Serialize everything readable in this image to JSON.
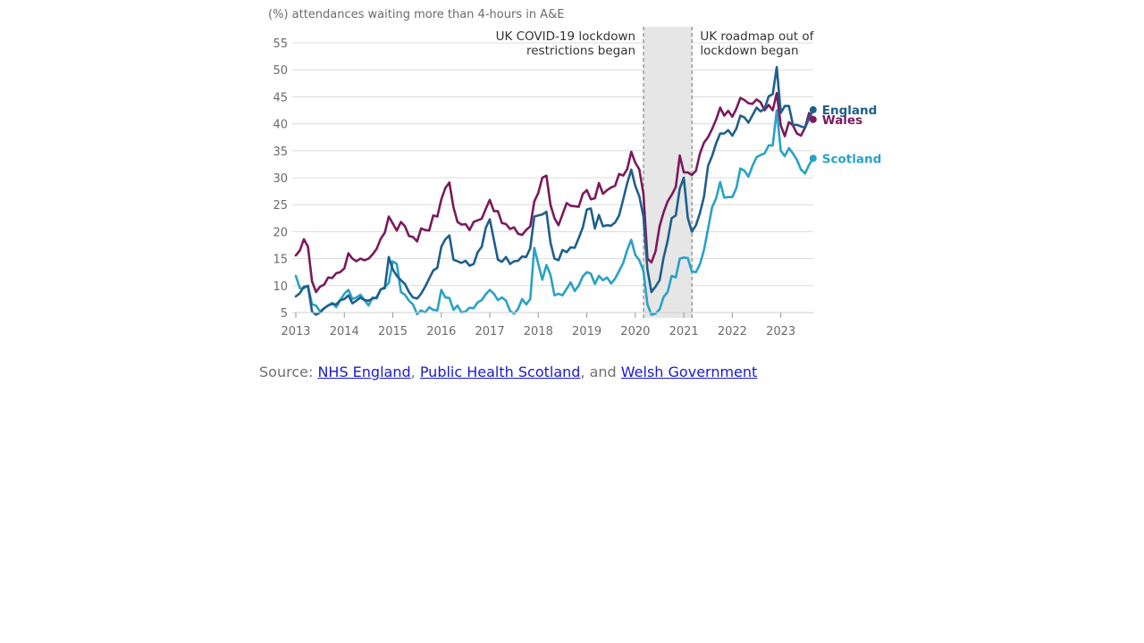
{
  "chart_data": {
    "type": "line",
    "title": "",
    "ylabel": "(%) attendances waiting more than 4-hours in A&E",
    "xlabel": "",
    "ylim": [
      5,
      57
    ],
    "xlim": [
      2013.0,
      2023.67
    ],
    "y_ticks": [
      5,
      10,
      15,
      20,
      25,
      30,
      35,
      40,
      45,
      50,
      55
    ],
    "x_ticks": [
      "2013",
      "2014",
      "2015",
      "2016",
      "2017",
      "2018",
      "2019",
      "2020",
      "2021",
      "2022",
      "2023"
    ],
    "grid": true,
    "shaded_period": [
      2020.17,
      2021.17
    ],
    "annotations": [
      {
        "x": 2020.17,
        "lines": [
          "UK COVID-19 lockdown",
          "restrictions began"
        ],
        "align": "right"
      },
      {
        "x": 2021.17,
        "lines": [
          "UK roadmap out of",
          "lockdown began"
        ],
        "align": "left"
      }
    ],
    "series": [
      {
        "name": "England",
        "color": "#1f5f8b",
        "start": 2013.0,
        "step": 0.08333,
        "values": [
          8.0,
          8.6,
          9.8,
          9.9,
          5.2,
          4.6,
          5.0,
          5.8,
          6.3,
          6.6,
          6.5,
          7.3,
          7.5,
          8.2,
          6.7,
          7.2,
          7.8,
          7.3,
          7.2,
          7.6,
          7.8,
          9.3,
          9.5,
          15.3,
          13.0,
          11.8,
          11.0,
          10.3,
          8.8,
          7.8,
          7.6,
          8.5,
          9.8,
          11.3,
          12.8,
          13.3,
          17.2,
          18.6,
          19.3,
          14.8,
          14.5,
          14.2,
          14.6,
          13.7,
          14.0,
          16.2,
          17.2,
          20.7,
          22.3,
          18.5,
          14.8,
          14.4,
          15.3,
          14.0,
          14.5,
          14.6,
          15.4,
          15.3,
          16.9,
          22.8,
          23.0,
          23.2,
          23.7,
          18.0,
          15.0,
          14.7,
          16.6,
          16.2,
          17.1,
          17.0,
          18.8,
          20.8,
          24.1,
          24.3,
          20.6,
          23.1,
          21.0,
          21.2,
          21.1,
          21.7,
          23.0,
          26.0,
          29.0,
          31.5,
          28.5,
          26.5,
          22.8,
          13.0,
          8.8,
          9.8,
          11.0,
          15.2,
          18.3,
          22.5,
          23.0,
          28.0,
          30.0,
          22.5,
          20.0,
          21.2,
          23.5,
          26.5,
          32.2,
          34.0,
          36.4,
          38.2,
          38.2,
          38.8,
          37.8,
          39.1,
          41.5,
          41.2,
          40.2,
          41.6,
          43.0,
          42.3,
          42.8,
          45.1,
          45.5,
          50.5,
          42.0,
          43.3,
          43.3,
          39.8,
          39.8,
          39.5,
          39.3,
          41.0,
          42.6
        ]
      },
      {
        "name": "Wales",
        "color": "#7a1a5c",
        "start": 2013.0,
        "step": 0.08333,
        "values": [
          15.6,
          16.5,
          18.6,
          17.2,
          10.8,
          8.8,
          9.8,
          10.2,
          11.5,
          11.4,
          12.3,
          12.5,
          13.2,
          16.0,
          15.0,
          14.5,
          15.0,
          14.7,
          15.0,
          15.8,
          16.8,
          18.7,
          19.8,
          22.8,
          21.5,
          20.2,
          21.8,
          21.0,
          19.2,
          19.0,
          18.2,
          20.6,
          20.3,
          20.2,
          23.0,
          22.8,
          26.0,
          28.1,
          29.1,
          24.5,
          21.8,
          21.3,
          21.4,
          20.3,
          21.8,
          22.1,
          22.4,
          24.2,
          25.9,
          23.8,
          23.8,
          21.6,
          21.4,
          20.5,
          20.8,
          19.6,
          19.4,
          20.3,
          21.0,
          25.6,
          27.2,
          30.0,
          30.4,
          25.0,
          22.5,
          21.2,
          23.2,
          25.3,
          24.8,
          24.7,
          24.6,
          27.0,
          27.7,
          26.0,
          26.2,
          29.0,
          27.0,
          27.7,
          28.2,
          28.5,
          30.7,
          30.4,
          31.6,
          34.8,
          32.8,
          31.5,
          27.0,
          15.0,
          14.3,
          16.3,
          21.0,
          23.6,
          25.6,
          26.8,
          28.3,
          34.1,
          31.0,
          31.0,
          30.5,
          31.3,
          34.5,
          36.5,
          37.5,
          39.0,
          40.8,
          43.0,
          41.5,
          42.4,
          41.3,
          42.8,
          44.8,
          44.4,
          43.8,
          43.7,
          44.5,
          44.0,
          42.5,
          43.5,
          42.5,
          45.7,
          39.7,
          37.7,
          40.3,
          39.7,
          38.2,
          37.8,
          39.3,
          42.0,
          40.8
        ]
      },
      {
        "name": "Scotland",
        "color": "#28a2c6",
        "start": 2013.0,
        "step": 0.08333,
        "values": [
          11.8,
          9.5,
          9.5,
          10.0,
          6.5,
          6.3,
          5.2,
          5.8,
          6.3,
          6.8,
          6.0,
          7.3,
          8.5,
          9.2,
          7.5,
          7.8,
          8.3,
          7.3,
          6.3,
          7.8,
          7.6,
          9.3,
          9.7,
          10.5,
          14.5,
          14.0,
          8.8,
          8.3,
          7.2,
          6.5,
          4.7,
          5.4,
          5.0,
          6.0,
          5.5,
          5.4,
          9.2,
          7.8,
          7.7,
          5.5,
          6.3,
          5.0,
          5.2,
          5.9,
          5.8,
          6.9,
          7.3,
          8.4,
          9.2,
          8.5,
          7.3,
          7.8,
          7.2,
          5.3,
          4.8,
          5.7,
          7.5,
          6.5,
          7.5,
          17.0,
          14.0,
          11.1,
          13.8,
          12.0,
          8.2,
          8.5,
          8.2,
          9.4,
          10.6,
          9.0,
          10.0,
          11.7,
          12.5,
          12.2,
          10.3,
          11.8,
          11.0,
          11.5,
          10.4,
          11.3,
          12.7,
          14.2,
          16.6,
          18.5,
          15.7,
          14.7,
          12.7,
          6.5,
          4.6,
          4.8,
          5.6,
          7.9,
          8.8,
          11.8,
          11.5,
          15.0,
          15.2,
          15.1,
          12.6,
          12.5,
          14.0,
          16.6,
          20.5,
          24.5,
          26.2,
          29.2,
          26.3,
          26.4,
          26.4,
          28.1,
          31.7,
          31.3,
          30.2,
          32.2,
          33.8,
          34.2,
          34.5,
          36.0,
          36.0,
          42.5,
          35.0,
          34.0,
          35.5,
          34.5,
          33.3,
          31.5,
          30.8,
          32.4,
          33.6
        ]
      }
    ]
  },
  "source": {
    "prefix": "Source: ",
    "link1": "NHS England",
    "sep1": ", ",
    "link2": "Public Health Scotland",
    "sep2": ", and ",
    "link3": "Welsh Government"
  }
}
